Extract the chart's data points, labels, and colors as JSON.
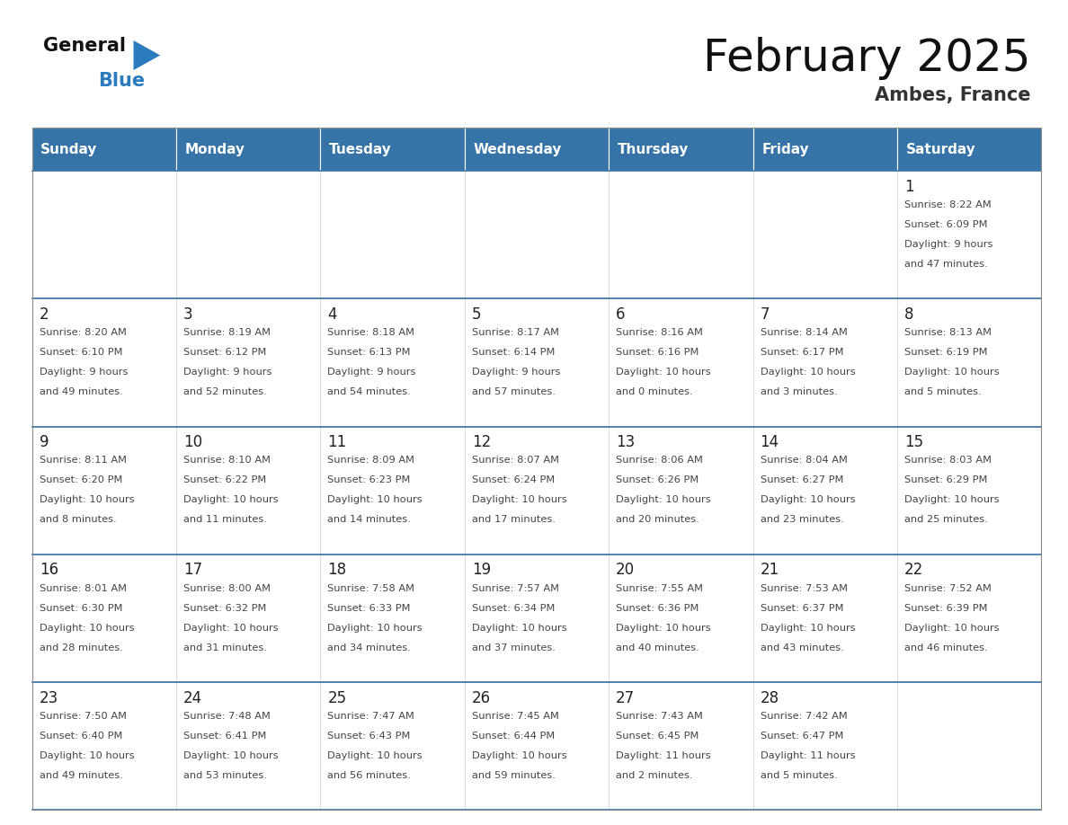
{
  "title": "February 2025",
  "subtitle": "Ambes, France",
  "header_color": "#3674a8",
  "header_text_color": "#ffffff",
  "cell_bg_color": "#ffffff",
  "text_color": "#333333",
  "day_number_color": "#3674a8",
  "days_of_week": [
    "Sunday",
    "Monday",
    "Tuesday",
    "Wednesday",
    "Thursday",
    "Friday",
    "Saturday"
  ],
  "weeks": [
    [
      {
        "day": null
      },
      {
        "day": null
      },
      {
        "day": null
      },
      {
        "day": null
      },
      {
        "day": null
      },
      {
        "day": null
      },
      {
        "day": 1,
        "sunrise": "8:22 AM",
        "sunset": "6:09 PM",
        "daylight_h": "9 hours",
        "daylight_m": "and 47 minutes."
      }
    ],
    [
      {
        "day": 2,
        "sunrise": "8:20 AM",
        "sunset": "6:10 PM",
        "daylight_h": "9 hours",
        "daylight_m": "and 49 minutes."
      },
      {
        "day": 3,
        "sunrise": "8:19 AM",
        "sunset": "6:12 PM",
        "daylight_h": "9 hours",
        "daylight_m": "and 52 minutes."
      },
      {
        "day": 4,
        "sunrise": "8:18 AM",
        "sunset": "6:13 PM",
        "daylight_h": "9 hours",
        "daylight_m": "and 54 minutes."
      },
      {
        "day": 5,
        "sunrise": "8:17 AM",
        "sunset": "6:14 PM",
        "daylight_h": "9 hours",
        "daylight_m": "and 57 minutes."
      },
      {
        "day": 6,
        "sunrise": "8:16 AM",
        "sunset": "6:16 PM",
        "daylight_h": "10 hours",
        "daylight_m": "and 0 minutes."
      },
      {
        "day": 7,
        "sunrise": "8:14 AM",
        "sunset": "6:17 PM",
        "daylight_h": "10 hours",
        "daylight_m": "and 3 minutes."
      },
      {
        "day": 8,
        "sunrise": "8:13 AM",
        "sunset": "6:19 PM",
        "daylight_h": "10 hours",
        "daylight_m": "and 5 minutes."
      }
    ],
    [
      {
        "day": 9,
        "sunrise": "8:11 AM",
        "sunset": "6:20 PM",
        "daylight_h": "10 hours",
        "daylight_m": "and 8 minutes."
      },
      {
        "day": 10,
        "sunrise": "8:10 AM",
        "sunset": "6:22 PM",
        "daylight_h": "10 hours",
        "daylight_m": "and 11 minutes."
      },
      {
        "day": 11,
        "sunrise": "8:09 AM",
        "sunset": "6:23 PM",
        "daylight_h": "10 hours",
        "daylight_m": "and 14 minutes."
      },
      {
        "day": 12,
        "sunrise": "8:07 AM",
        "sunset": "6:24 PM",
        "daylight_h": "10 hours",
        "daylight_m": "and 17 minutes."
      },
      {
        "day": 13,
        "sunrise": "8:06 AM",
        "sunset": "6:26 PM",
        "daylight_h": "10 hours",
        "daylight_m": "and 20 minutes."
      },
      {
        "day": 14,
        "sunrise": "8:04 AM",
        "sunset": "6:27 PM",
        "daylight_h": "10 hours",
        "daylight_m": "and 23 minutes."
      },
      {
        "day": 15,
        "sunrise": "8:03 AM",
        "sunset": "6:29 PM",
        "daylight_h": "10 hours",
        "daylight_m": "and 25 minutes."
      }
    ],
    [
      {
        "day": 16,
        "sunrise": "8:01 AM",
        "sunset": "6:30 PM",
        "daylight_h": "10 hours",
        "daylight_m": "and 28 minutes."
      },
      {
        "day": 17,
        "sunrise": "8:00 AM",
        "sunset": "6:32 PM",
        "daylight_h": "10 hours",
        "daylight_m": "and 31 minutes."
      },
      {
        "day": 18,
        "sunrise": "7:58 AM",
        "sunset": "6:33 PM",
        "daylight_h": "10 hours",
        "daylight_m": "and 34 minutes."
      },
      {
        "day": 19,
        "sunrise": "7:57 AM",
        "sunset": "6:34 PM",
        "daylight_h": "10 hours",
        "daylight_m": "and 37 minutes."
      },
      {
        "day": 20,
        "sunrise": "7:55 AM",
        "sunset": "6:36 PM",
        "daylight_h": "10 hours",
        "daylight_m": "and 40 minutes."
      },
      {
        "day": 21,
        "sunrise": "7:53 AM",
        "sunset": "6:37 PM",
        "daylight_h": "10 hours",
        "daylight_m": "and 43 minutes."
      },
      {
        "day": 22,
        "sunrise": "7:52 AM",
        "sunset": "6:39 PM",
        "daylight_h": "10 hours",
        "daylight_m": "and 46 minutes."
      }
    ],
    [
      {
        "day": 23,
        "sunrise": "7:50 AM",
        "sunset": "6:40 PM",
        "daylight_h": "10 hours",
        "daylight_m": "and 49 minutes."
      },
      {
        "day": 24,
        "sunrise": "7:48 AM",
        "sunset": "6:41 PM",
        "daylight_h": "10 hours",
        "daylight_m": "and 53 minutes."
      },
      {
        "day": 25,
        "sunrise": "7:47 AM",
        "sunset": "6:43 PM",
        "daylight_h": "10 hours",
        "daylight_m": "and 56 minutes."
      },
      {
        "day": 26,
        "sunrise": "7:45 AM",
        "sunset": "6:44 PM",
        "daylight_h": "10 hours",
        "daylight_m": "and 59 minutes."
      },
      {
        "day": 27,
        "sunrise": "7:43 AM",
        "sunset": "6:45 PM",
        "daylight_h": "11 hours",
        "daylight_m": "and 2 minutes."
      },
      {
        "day": 28,
        "sunrise": "7:42 AM",
        "sunset": "6:47 PM",
        "daylight_h": "11 hours",
        "daylight_m": "and 5 minutes."
      },
      {
        "day": null
      }
    ]
  ]
}
